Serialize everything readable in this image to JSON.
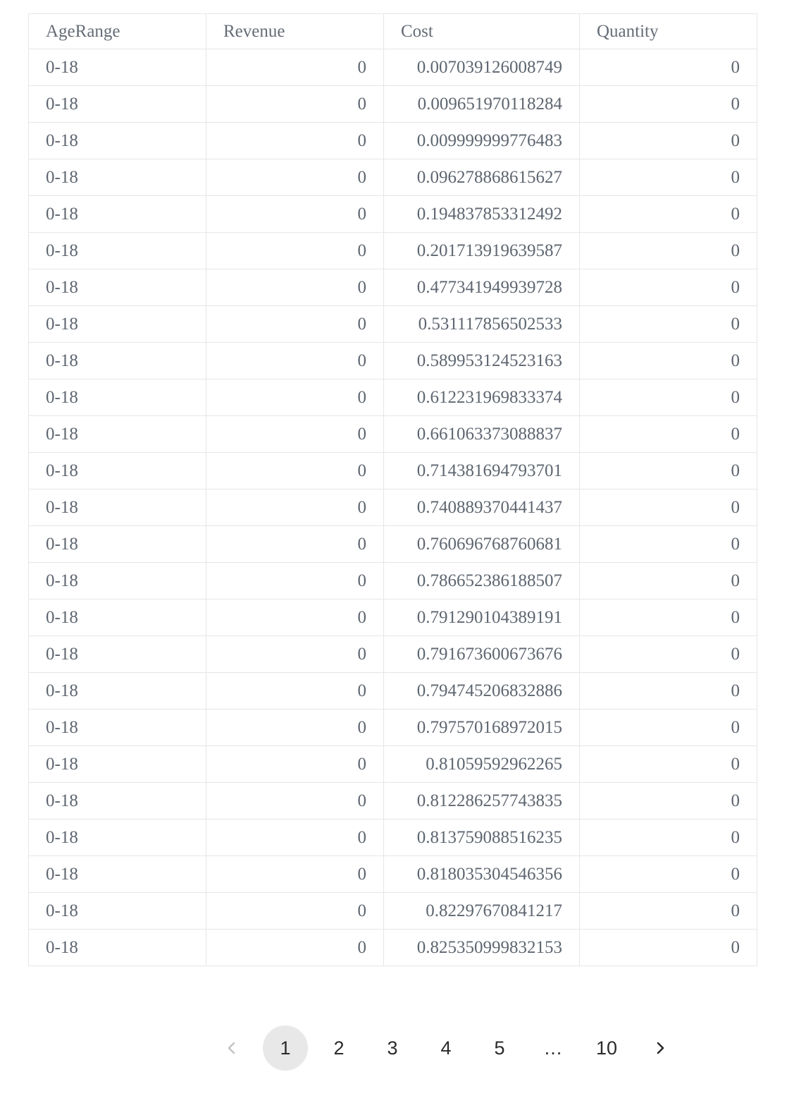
{
  "table": {
    "columns": [
      "AgeRange",
      "Revenue",
      "Cost",
      "Quantity"
    ],
    "rows": [
      [
        "0-18",
        "0",
        "0.007039126008749",
        "0"
      ],
      [
        "0-18",
        "0",
        "0.009651970118284",
        "0"
      ],
      [
        "0-18",
        "0",
        "0.009999999776483",
        "0"
      ],
      [
        "0-18",
        "0",
        "0.096278868615627",
        "0"
      ],
      [
        "0-18",
        "0",
        "0.194837853312492",
        "0"
      ],
      [
        "0-18",
        "0",
        "0.201713919639587",
        "0"
      ],
      [
        "0-18",
        "0",
        "0.477341949939728",
        "0"
      ],
      [
        "0-18",
        "0",
        "0.531117856502533",
        "0"
      ],
      [
        "0-18",
        "0",
        "0.589953124523163",
        "0"
      ],
      [
        "0-18",
        "0",
        "0.612231969833374",
        "0"
      ],
      [
        "0-18",
        "0",
        "0.661063373088837",
        "0"
      ],
      [
        "0-18",
        "0",
        "0.714381694793701",
        "0"
      ],
      [
        "0-18",
        "0",
        "0.740889370441437",
        "0"
      ],
      [
        "0-18",
        "0",
        "0.760696768760681",
        "0"
      ],
      [
        "0-18",
        "0",
        "0.786652386188507",
        "0"
      ],
      [
        "0-18",
        "0",
        "0.791290104389191",
        "0"
      ],
      [
        "0-18",
        "0",
        "0.791673600673676",
        "0"
      ],
      [
        "0-18",
        "0",
        "0.794745206832886",
        "0"
      ],
      [
        "0-18",
        "0",
        "0.797570168972015",
        "0"
      ],
      [
        "0-18",
        "0",
        "0.81059592962265",
        "0"
      ],
      [
        "0-18",
        "0",
        "0.812286257743835",
        "0"
      ],
      [
        "0-18",
        "0",
        "0.813759088516235",
        "0"
      ],
      [
        "0-18",
        "0",
        "0.818035304546356",
        "0"
      ],
      [
        "0-18",
        "0",
        "0.82297670841217",
        "0"
      ],
      [
        "0-18",
        "0",
        "0.825350999832153",
        "0"
      ]
    ]
  },
  "pagination": {
    "prev_icon": "chevron-left-icon",
    "next_icon": "chevron-right-icon",
    "pages": [
      "1",
      "2",
      "3",
      "4",
      "5",
      "…",
      "10"
    ],
    "current_page": "1",
    "colors": {
      "active_bg": "#e8e8e8",
      "prev_disabled": "#c4c4c4",
      "next": "#2b2b2b"
    }
  }
}
